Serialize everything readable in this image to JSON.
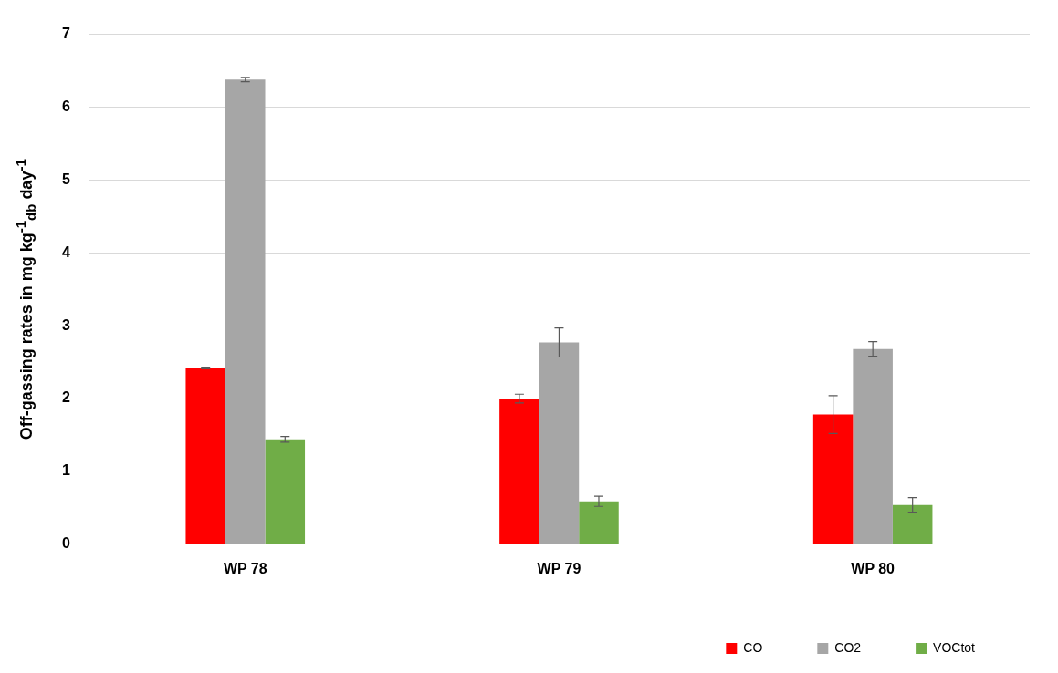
{
  "chart_data": {
    "type": "bar",
    "ylabel": "Off-gassing rates in mg kg$^{-1}$$_{db}$ day$^{-1}$",
    "categories": [
      "WP 78",
      "WP 79",
      "WP 80"
    ],
    "series": [
      {
        "name": "CO",
        "color": "#ff0000",
        "values": [
          2.42,
          2.0,
          1.78
        ],
        "errors": [
          0.01,
          0.06,
          0.26
        ]
      },
      {
        "name": "CO2",
        "color": "#a6a6a6",
        "values": [
          6.38,
          2.77,
          2.68
        ],
        "errors": [
          0.03,
          0.2,
          0.1
        ]
      },
      {
        "name": "VOCtot",
        "color": "#70ad47",
        "values": [
          1.44,
          0.59,
          0.54
        ],
        "errors": [
          0.04,
          0.07,
          0.1
        ]
      }
    ],
    "ylim": [
      0,
      7
    ],
    "yticks": [
      0,
      1,
      2,
      3,
      4,
      5,
      6,
      7
    ],
    "grid": "y",
    "legend": "bottom right"
  }
}
